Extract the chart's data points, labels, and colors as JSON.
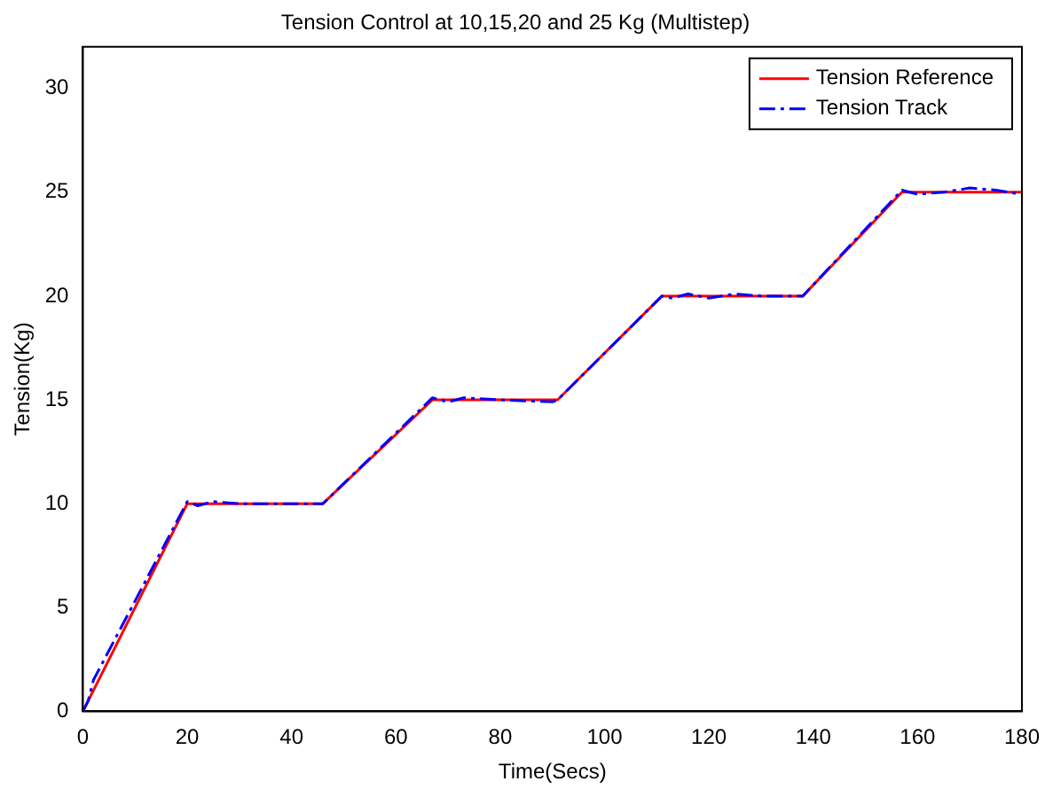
{
  "chart_data": {
    "type": "line",
    "title": "Tension Control at 10,15,20 and 25 Kg (Multistep)",
    "xlabel": "Time(Secs)",
    "ylabel": "Tension(Kg)",
    "xlim": [
      0,
      180
    ],
    "xticks": [
      0,
      20,
      40,
      60,
      80,
      100,
      120,
      140,
      160,
      180
    ],
    "ylim": [
      0,
      32
    ],
    "yticks": [
      0,
      5,
      10,
      15,
      20,
      25,
      30
    ],
    "grid": false,
    "legend": "top right",
    "marker": "none",
    "series": [
      {
        "name": "Tension Reference",
        "color": "#ff0000",
        "line_style": "solid",
        "x": [
          0,
          20,
          46,
          67,
          91,
          111,
          138,
          157,
          180
        ],
        "values": [
          0,
          10,
          10,
          15,
          15,
          20,
          20,
          25,
          25
        ]
      },
      {
        "name": "Tension Track",
        "color": "#0000ff",
        "line_style": "dashed",
        "x": [
          0,
          1,
          2,
          20,
          22,
          25,
          30,
          46,
          67,
          70,
          73,
          80,
          90,
          91,
          111,
          113,
          116,
          120,
          125,
          130,
          138,
          157,
          160,
          165,
          170,
          175,
          180
        ],
        "values": [
          0,
          0.5,
          1.5,
          10.1,
          9.9,
          10.1,
          10,
          10,
          15.1,
          14.9,
          15.1,
          15,
          14.9,
          15,
          20,
          19.9,
          20.1,
          19.9,
          20.1,
          20,
          20,
          25.1,
          24.9,
          25,
          25.2,
          25.1,
          24.9
        ]
      }
    ]
  }
}
